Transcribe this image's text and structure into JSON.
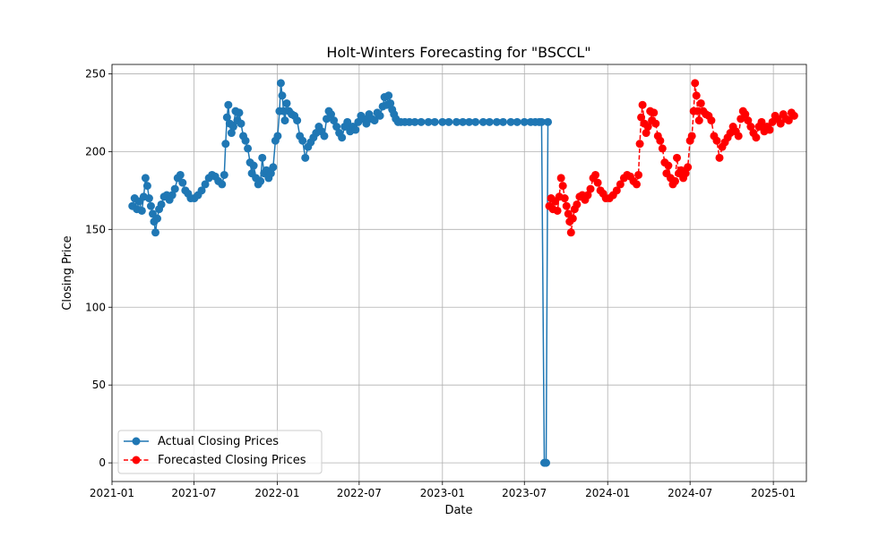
{
  "chart_data": {
    "type": "line",
    "title": "Holt-Winters Forecasting for \"BSCCL\"",
    "xlabel": "Date",
    "ylabel": "Closing Price",
    "x_scale": "date",
    "xlim": [
      "2021-01-01",
      "2025-03-15"
    ],
    "ylim": [
      -12,
      256
    ],
    "x_ticks": [
      "2021-01-01",
      "2021-07-01",
      "2022-01-01",
      "2022-07-01",
      "2023-01-01",
      "2023-07-01",
      "2024-01-01",
      "2024-07-01",
      "2025-01-01"
    ],
    "x_tick_labels": [
      "2021-01",
      "2021-07",
      "2022-01",
      "2022-07",
      "2023-01",
      "2023-07",
      "2024-01",
      "2024-07",
      "2025-01"
    ],
    "y_ticks": [
      0,
      50,
      100,
      150,
      200,
      250
    ],
    "y_tick_labels": [
      "0",
      "50",
      "100",
      "150",
      "200",
      "250"
    ],
    "grid": true,
    "legend_position": "lower-left",
    "series": [
      {
        "name": "Actual Closing Prices",
        "color": "#1f77b4",
        "line_style": "solid",
        "marker": "circle",
        "points": [
          [
            "2021-02-15",
            165
          ],
          [
            "2021-02-20",
            170
          ],
          [
            "2021-02-25",
            163
          ],
          [
            "2021-03-02",
            168
          ],
          [
            "2021-03-08",
            162
          ],
          [
            "2021-03-12",
            171
          ],
          [
            "2021-03-16",
            183
          ],
          [
            "2021-03-20",
            178
          ],
          [
            "2021-03-24",
            170
          ],
          [
            "2021-03-28",
            165
          ],
          [
            "2021-04-01",
            160
          ],
          [
            "2021-04-04",
            155
          ],
          [
            "2021-04-07",
            148
          ],
          [
            "2021-04-11",
            157
          ],
          [
            "2021-04-15",
            163
          ],
          [
            "2021-04-20",
            166
          ],
          [
            "2021-04-26",
            171
          ],
          [
            "2021-05-02",
            172
          ],
          [
            "2021-05-08",
            169
          ],
          [
            "2021-05-14",
            172
          ],
          [
            "2021-05-20",
            176
          ],
          [
            "2021-05-26",
            183
          ],
          [
            "2021-06-01",
            185
          ],
          [
            "2021-06-06",
            180
          ],
          [
            "2021-06-12",
            175
          ],
          [
            "2021-06-18",
            173
          ],
          [
            "2021-06-24",
            170
          ],
          [
            "2021-07-02",
            170
          ],
          [
            "2021-07-10",
            172
          ],
          [
            "2021-07-18",
            175
          ],
          [
            "2021-07-26",
            179
          ],
          [
            "2021-08-03",
            183
          ],
          [
            "2021-08-10",
            185
          ],
          [
            "2021-08-17",
            184
          ],
          [
            "2021-08-24",
            181
          ],
          [
            "2021-09-01",
            179
          ],
          [
            "2021-09-06",
            185
          ],
          [
            "2021-09-09",
            205
          ],
          [
            "2021-09-12",
            222
          ],
          [
            "2021-09-15",
            230
          ],
          [
            "2021-09-18",
            218
          ],
          [
            "2021-09-22",
            212
          ],
          [
            "2021-09-26",
            216
          ],
          [
            "2021-10-01",
            226
          ],
          [
            "2021-10-05",
            220
          ],
          [
            "2021-10-09",
            225
          ],
          [
            "2021-10-13",
            218
          ],
          [
            "2021-10-18",
            210
          ],
          [
            "2021-10-23",
            207
          ],
          [
            "2021-10-28",
            202
          ],
          [
            "2021-11-02",
            193
          ],
          [
            "2021-11-06",
            186
          ],
          [
            "2021-11-10",
            191
          ],
          [
            "2021-11-15",
            183
          ],
          [
            "2021-11-20",
            179
          ],
          [
            "2021-11-25",
            181
          ],
          [
            "2021-11-29",
            196
          ],
          [
            "2021-12-03",
            186
          ],
          [
            "2021-12-08",
            188
          ],
          [
            "2021-12-13",
            183
          ],
          [
            "2021-12-18",
            186
          ],
          [
            "2021-12-23",
            190
          ],
          [
            "2021-12-28",
            207
          ],
          [
            "2022-01-02",
            210
          ],
          [
            "2022-01-06",
            226
          ],
          [
            "2022-01-09",
            244
          ],
          [
            "2022-01-12",
            236
          ],
          [
            "2022-01-15",
            226
          ],
          [
            "2022-01-18",
            220
          ],
          [
            "2022-01-22",
            231
          ],
          [
            "2022-01-27",
            226
          ],
          [
            "2022-02-02",
            224
          ],
          [
            "2022-02-08",
            223
          ],
          [
            "2022-02-14",
            220
          ],
          [
            "2022-02-20",
            210
          ],
          [
            "2022-02-26",
            207
          ],
          [
            "2022-03-04",
            196
          ],
          [
            "2022-03-10",
            203
          ],
          [
            "2022-03-16",
            206
          ],
          [
            "2022-03-22",
            209
          ],
          [
            "2022-03-28",
            212
          ],
          [
            "2022-04-03",
            216
          ],
          [
            "2022-04-09",
            213
          ],
          [
            "2022-04-15",
            210
          ],
          [
            "2022-04-20",
            221
          ],
          [
            "2022-04-25",
            226
          ],
          [
            "2022-04-30",
            224
          ],
          [
            "2022-05-06",
            220
          ],
          [
            "2022-05-12",
            216
          ],
          [
            "2022-05-18",
            212
          ],
          [
            "2022-05-24",
            209
          ],
          [
            "2022-05-30",
            216
          ],
          [
            "2022-06-05",
            219
          ],
          [
            "2022-06-11",
            213
          ],
          [
            "2022-06-17",
            216
          ],
          [
            "2022-06-23",
            214
          ],
          [
            "2022-06-29",
            219
          ],
          [
            "2022-07-05",
            223
          ],
          [
            "2022-07-11",
            221
          ],
          [
            "2022-07-17",
            218
          ],
          [
            "2022-07-23",
            224
          ],
          [
            "2022-07-29",
            221
          ],
          [
            "2022-08-04",
            220
          ],
          [
            "2022-08-10",
            225
          ],
          [
            "2022-08-16",
            223
          ],
          [
            "2022-08-22",
            229
          ],
          [
            "2022-08-26",
            235
          ],
          [
            "2022-08-31",
            230
          ],
          [
            "2022-09-04",
            236
          ],
          [
            "2022-09-08",
            231
          ],
          [
            "2022-09-12",
            227
          ],
          [
            "2022-09-16",
            224
          ],
          [
            "2022-09-20",
            221
          ],
          [
            "2022-09-25",
            219
          ],
          [
            "2022-10-01",
            219
          ],
          [
            "2022-10-10",
            219
          ],
          [
            "2022-10-20",
            219
          ],
          [
            "2022-11-01",
            219
          ],
          [
            "2022-11-15",
            219
          ],
          [
            "2022-12-01",
            219
          ],
          [
            "2022-12-15",
            219
          ],
          [
            "2023-01-01",
            219
          ],
          [
            "2023-01-15",
            219
          ],
          [
            "2023-02-01",
            219
          ],
          [
            "2023-02-15",
            219
          ],
          [
            "2023-03-01",
            219
          ],
          [
            "2023-03-15",
            219
          ],
          [
            "2023-04-01",
            219
          ],
          [
            "2023-04-15",
            219
          ],
          [
            "2023-05-01",
            219
          ],
          [
            "2023-05-15",
            219
          ],
          [
            "2023-06-01",
            219
          ],
          [
            "2023-06-15",
            219
          ],
          [
            "2023-07-01",
            219
          ],
          [
            "2023-07-15",
            219
          ],
          [
            "2023-07-25",
            219
          ],
          [
            "2023-08-03",
            219
          ],
          [
            "2023-08-08",
            219
          ],
          [
            "2023-08-14",
            0
          ],
          [
            "2023-08-18",
            0
          ],
          [
            "2023-08-22",
            219
          ]
        ]
      },
      {
        "name": "Forecasted Closing Prices",
        "color": "#ff0000",
        "line_style": "dashed",
        "marker": "circle",
        "points": [
          [
            "2023-08-25",
            165
          ],
          [
            "2023-08-29",
            170
          ],
          [
            "2023-09-02",
            163
          ],
          [
            "2023-09-07",
            168
          ],
          [
            "2023-09-12",
            162
          ],
          [
            "2023-09-16",
            171
          ],
          [
            "2023-09-20",
            183
          ],
          [
            "2023-09-24",
            178
          ],
          [
            "2023-09-28",
            170
          ],
          [
            "2023-10-02",
            165
          ],
          [
            "2023-10-06",
            160
          ],
          [
            "2023-10-09",
            155
          ],
          [
            "2023-10-12",
            148
          ],
          [
            "2023-10-16",
            157
          ],
          [
            "2023-10-20",
            163
          ],
          [
            "2023-10-25",
            166
          ],
          [
            "2023-10-31",
            171
          ],
          [
            "2023-11-06",
            172
          ],
          [
            "2023-11-12",
            169
          ],
          [
            "2023-11-18",
            172
          ],
          [
            "2023-11-24",
            176
          ],
          [
            "2023-11-30",
            183
          ],
          [
            "2023-12-05",
            185
          ],
          [
            "2023-12-10",
            180
          ],
          [
            "2023-12-16",
            175
          ],
          [
            "2023-12-22",
            173
          ],
          [
            "2023-12-28",
            170
          ],
          [
            "2024-01-05",
            170
          ],
          [
            "2024-01-13",
            172
          ],
          [
            "2024-01-21",
            175
          ],
          [
            "2024-01-29",
            179
          ],
          [
            "2024-02-06",
            183
          ],
          [
            "2024-02-13",
            185
          ],
          [
            "2024-02-20",
            184
          ],
          [
            "2024-02-27",
            181
          ],
          [
            "2024-03-05",
            179
          ],
          [
            "2024-03-09",
            185
          ],
          [
            "2024-03-12",
            205
          ],
          [
            "2024-03-15",
            222
          ],
          [
            "2024-03-18",
            230
          ],
          [
            "2024-03-22",
            218
          ],
          [
            "2024-03-26",
            212
          ],
          [
            "2024-03-30",
            216
          ],
          [
            "2024-04-04",
            226
          ],
          [
            "2024-04-08",
            220
          ],
          [
            "2024-04-12",
            225
          ],
          [
            "2024-04-16",
            218
          ],
          [
            "2024-04-21",
            210
          ],
          [
            "2024-04-26",
            207
          ],
          [
            "2024-05-01",
            202
          ],
          [
            "2024-05-06",
            193
          ],
          [
            "2024-05-10",
            186
          ],
          [
            "2024-05-14",
            191
          ],
          [
            "2024-05-19",
            183
          ],
          [
            "2024-05-24",
            179
          ],
          [
            "2024-05-29",
            181
          ],
          [
            "2024-06-02",
            196
          ],
          [
            "2024-06-06",
            186
          ],
          [
            "2024-06-11",
            188
          ],
          [
            "2024-06-16",
            183
          ],
          [
            "2024-06-21",
            186
          ],
          [
            "2024-06-26",
            190
          ],
          [
            "2024-07-01",
            207
          ],
          [
            "2024-07-05",
            210
          ],
          [
            "2024-07-09",
            226
          ],
          [
            "2024-07-12",
            244
          ],
          [
            "2024-07-15",
            236
          ],
          [
            "2024-07-18",
            226
          ],
          [
            "2024-07-21",
            220
          ],
          [
            "2024-07-25",
            231
          ],
          [
            "2024-07-30",
            226
          ],
          [
            "2024-08-05",
            224
          ],
          [
            "2024-08-11",
            223
          ],
          [
            "2024-08-17",
            220
          ],
          [
            "2024-08-23",
            210
          ],
          [
            "2024-08-29",
            207
          ],
          [
            "2024-09-04",
            196
          ],
          [
            "2024-09-10",
            203
          ],
          [
            "2024-09-16",
            206
          ],
          [
            "2024-09-22",
            209
          ],
          [
            "2024-09-28",
            212
          ],
          [
            "2024-10-04",
            216
          ],
          [
            "2024-10-10",
            213
          ],
          [
            "2024-10-16",
            210
          ],
          [
            "2024-10-21",
            221
          ],
          [
            "2024-10-26",
            226
          ],
          [
            "2024-10-31",
            224
          ],
          [
            "2024-11-06",
            220
          ],
          [
            "2024-11-12",
            216
          ],
          [
            "2024-11-18",
            212
          ],
          [
            "2024-11-24",
            209
          ],
          [
            "2024-11-30",
            216
          ],
          [
            "2024-12-06",
            219
          ],
          [
            "2024-12-12",
            213
          ],
          [
            "2024-12-18",
            216
          ],
          [
            "2024-12-24",
            214
          ],
          [
            "2024-12-30",
            219
          ],
          [
            "2025-01-05",
            223
          ],
          [
            "2025-01-11",
            221
          ],
          [
            "2025-01-17",
            218
          ],
          [
            "2025-01-23",
            224
          ],
          [
            "2025-01-29",
            221
          ],
          [
            "2025-02-04",
            220
          ],
          [
            "2025-02-10",
            225
          ],
          [
            "2025-02-16",
            223
          ]
        ]
      }
    ]
  }
}
